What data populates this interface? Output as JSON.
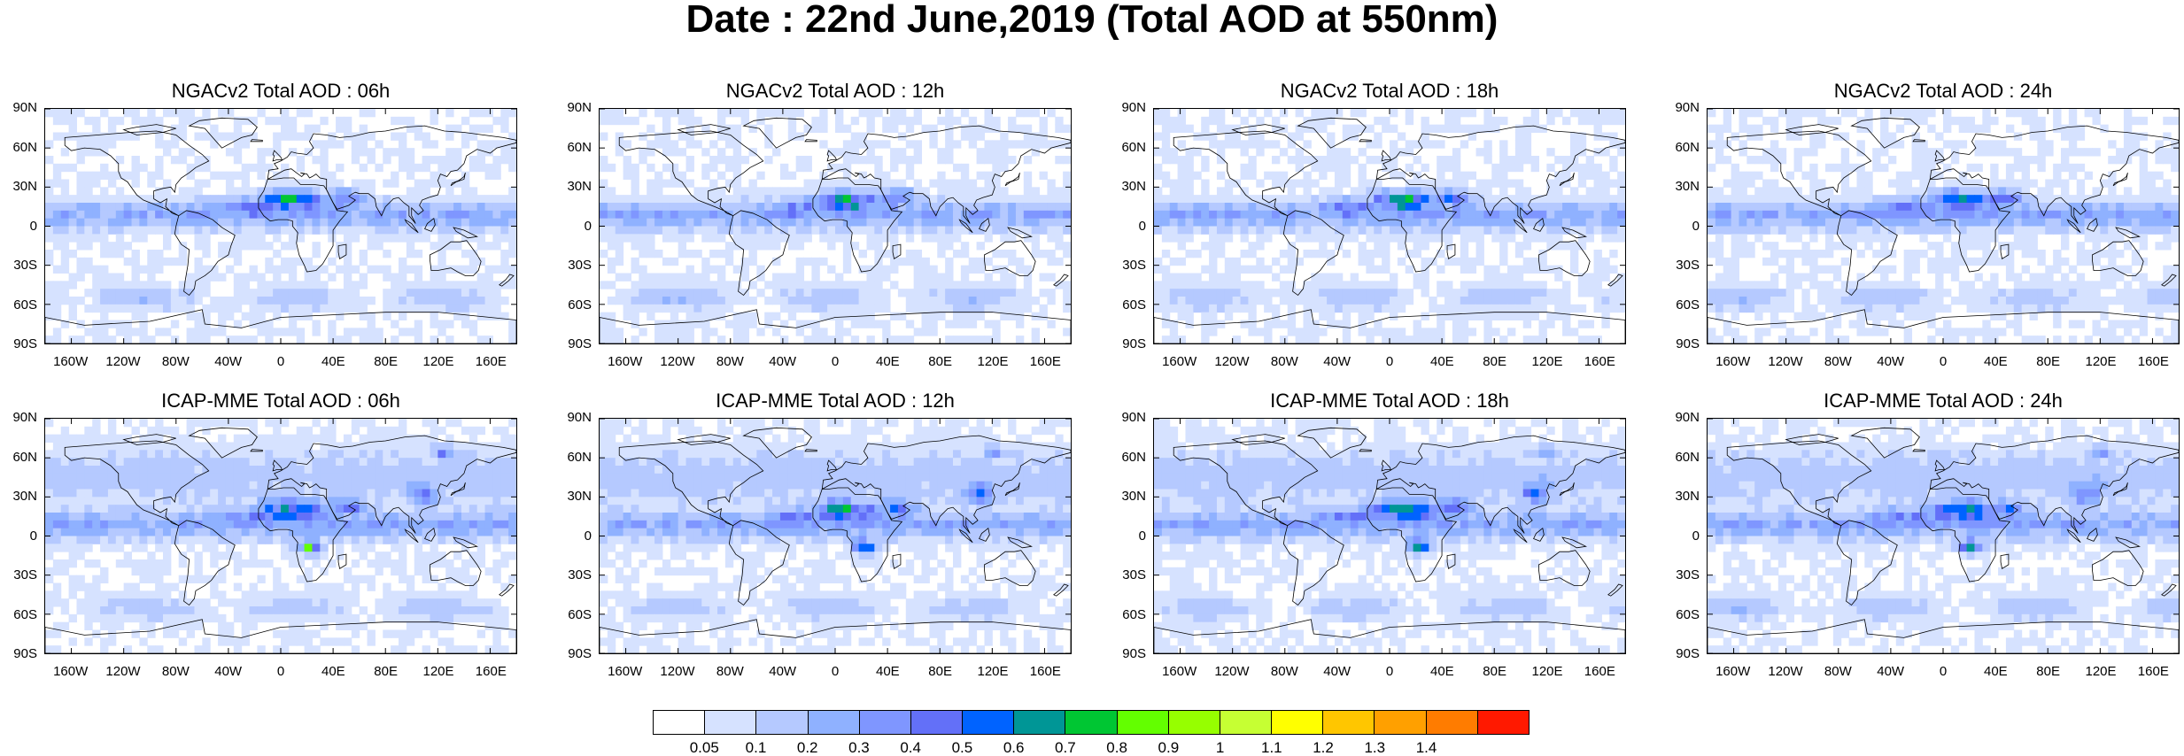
{
  "title": "Date : 22nd June,2019 (Total AOD at 550nm)",
  "panels": [
    {
      "title": "NGACv2 Total AOD : 06h",
      "model": "ngac",
      "hour": 6
    },
    {
      "title": "NGACv2 Total AOD : 12h",
      "model": "ngac",
      "hour": 12
    },
    {
      "title": "NGACv2 Total AOD : 18h",
      "model": "ngac",
      "hour": 18
    },
    {
      "title": "NGACv2 Total AOD : 24h",
      "model": "ngac",
      "hour": 24
    },
    {
      "title": "ICAP-MME Total AOD : 06h",
      "model": "icap",
      "hour": 6
    },
    {
      "title": "ICAP-MME Total AOD : 12h",
      "model": "icap",
      "hour": 12
    },
    {
      "title": "ICAP-MME Total AOD : 18h",
      "model": "icap",
      "hour": 18
    },
    {
      "title": "ICAP-MME Total AOD : 24h",
      "model": "icap",
      "hour": 24
    }
  ],
  "axes": {
    "lat_labels": [
      "90N",
      "60N",
      "30N",
      "0",
      "30S",
      "60S",
      "90S"
    ],
    "lat_values": [
      90,
      60,
      30,
      0,
      -30,
      -60,
      -90
    ],
    "lon_labels": [
      "160W",
      "120W",
      "80W",
      "40W",
      "0",
      "40E",
      "80E",
      "120E",
      "160E"
    ],
    "lon_values": [
      -160,
      -120,
      -80,
      -40,
      0,
      40,
      80,
      120,
      160
    ]
  },
  "colorbar": {
    "labels": [
      "0.05",
      "0.1",
      "0.2",
      "0.3",
      "0.4",
      "0.5",
      "0.6",
      "0.7",
      "0.8",
      "0.9",
      "1",
      "1.1",
      "1.2",
      "1.3",
      "1.4"
    ],
    "colors": [
      "#ffffff",
      "#d6e2ff",
      "#b5c9ff",
      "#8fb1ff",
      "#7f96ff",
      "#6370f8",
      "#0063ff",
      "#009696",
      "#00c633",
      "#63ff00",
      "#96ff00",
      "#c6ff33",
      "#ffff00",
      "#ffc600",
      "#ffa000",
      "#ff7c00",
      "#ff1900"
    ]
  }
}
